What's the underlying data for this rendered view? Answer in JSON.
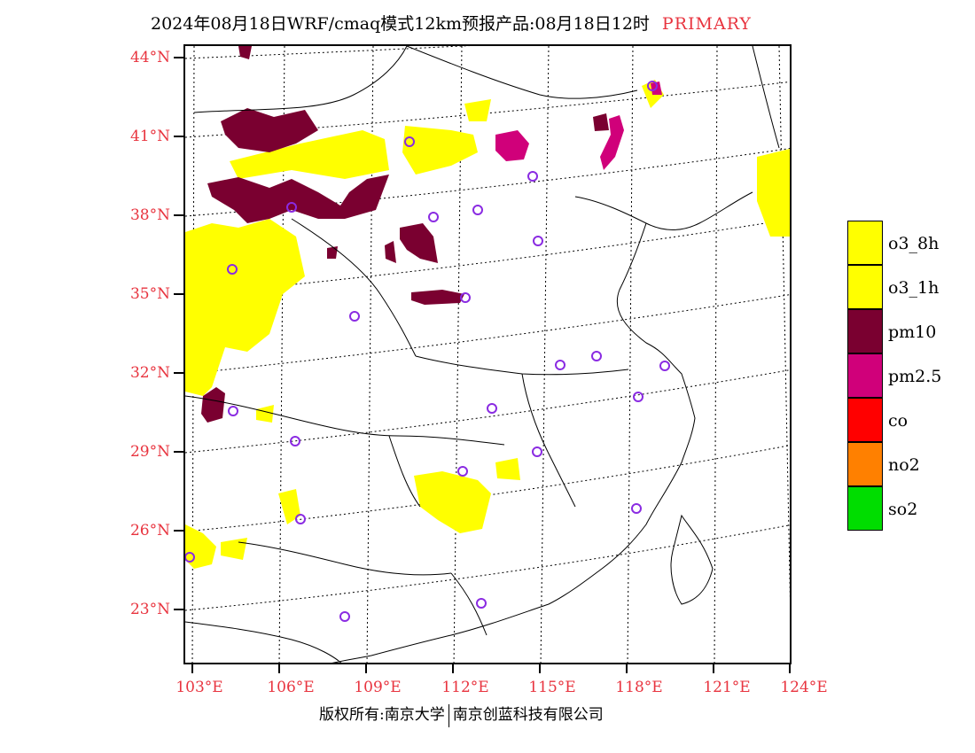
{
  "header": {
    "title": "2024年08月18日WRF/cmaq模式12km预报产品:08月18日12时",
    "tag": "PRIMARY"
  },
  "lat_labels": [
    "44°N",
    "41°N",
    "38°N",
    "35°N",
    "32°N",
    "29°N",
    "26°N",
    "23°N"
  ],
  "lon_labels": [
    "103°E",
    "106°E",
    "109°E",
    "112°E",
    "115°E",
    "118°E",
    "121°E",
    "124°E"
  ],
  "legend": [
    {
      "label": "o3_8h",
      "color": "#ffff00"
    },
    {
      "label": "o3_1h",
      "color": "#ffff00"
    },
    {
      "label": "pm10",
      "color": "#7a0030"
    },
    {
      "label": "pm2.5",
      "color": "#d0007a"
    },
    {
      "label": "co",
      "color": "#ff0000"
    },
    {
      "label": "no2",
      "color": "#ff8000"
    },
    {
      "label": "so2",
      "color": "#00dd00"
    }
  ],
  "footer": {
    "copyright": "版权所有:南京大学",
    "company": "南京创蓝科技有限公司"
  },
  "colors": {
    "accent": "#e8343f",
    "station": "#8a2be2"
  }
}
